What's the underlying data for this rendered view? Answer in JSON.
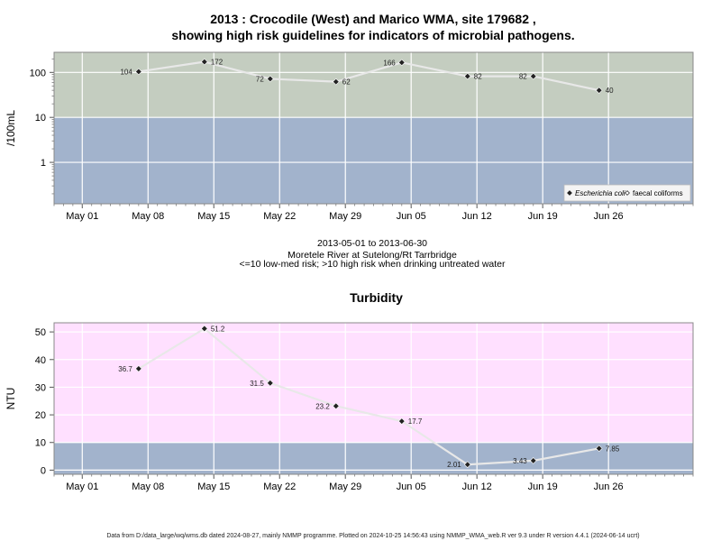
{
  "title_line1": "2013 : Crocodile (West) and Marico WMA, site 179682 ,",
  "title_line2": "showing high risk guidelines for indicators of microbial pathogens.",
  "subtitle": {
    "date_range": "2013-05-01 to 2013-06-30",
    "site": "Moretele River at Sutelong/Rt Tarrbridge",
    "risk_note": "<=10 low-med risk; >10 high risk when drinking untreated water"
  },
  "footer": "Data from D:/data_large/wq/wms.db dated 2024-08-27, mainly NMMP programme. Plotted on 2024-10-25 14:56:43 using NMMP_WMA_web.R ver 9.3 under R version 4.4.1 (2024-06-14 ucrt)",
  "colors": {
    "high_band_micro": "#c4cdc0",
    "high_band_turb": "#ffe0ff",
    "low_band": "#a2b3cc",
    "line": "#e8e8e8",
    "marker": "#222222"
  },
  "chart_data": [
    {
      "type": "line",
      "y_scale": "log",
      "ylabel": "/100mL",
      "yticks": [
        "1",
        "10",
        "100"
      ],
      "ytick_values": [
        1,
        10,
        100
      ],
      "ylim": [
        0.12,
        280
      ],
      "xticks": [
        "May 01",
        "May 08",
        "May 15",
        "May 22",
        "May 29",
        "Jun 05",
        "Jun 12",
        "Jun 19",
        "Jun 26"
      ],
      "xtick_dates": [
        "2013-05-01",
        "2013-05-08",
        "2013-05-15",
        "2013-05-22",
        "2013-05-29",
        "2013-06-05",
        "2013-06-12",
        "2013-06-19",
        "2013-06-26"
      ],
      "xlim": [
        "2013-04-28",
        "2013-07-05"
      ],
      "threshold": 10,
      "legend": {
        "position": "bottom-right",
        "entries": [
          {
            "label": "Escherichia coli",
            "marker": "diamond-filled",
            "italic": true
          },
          {
            "label": "faecal coliforms",
            "marker": "diamond-open",
            "italic": false
          }
        ]
      },
      "series": [
        {
          "name": "Escherichia coli",
          "x": [
            "2013-05-07",
            "2013-05-14",
            "2013-05-21",
            "2013-05-28",
            "2013-06-04",
            "2013-06-11",
            "2013-06-18",
            "2013-06-25"
          ],
          "y": [
            104,
            172,
            72,
            62,
            166,
            82,
            82,
            40
          ],
          "labels": [
            "104",
            "172",
            "72",
            "62",
            "166",
            "82",
            "82",
            "40"
          ],
          "label_side": [
            "left",
            "right",
            "left",
            "right",
            "left",
            "right",
            "left",
            "right"
          ]
        }
      ]
    },
    {
      "type": "line",
      "title": "Turbidity",
      "ylabel": "NTU",
      "yticks": [
        "0",
        "10",
        "20",
        "30",
        "40",
        "50"
      ],
      "ytick_values": [
        0,
        10,
        20,
        30,
        40,
        50
      ],
      "ylim": [
        -1.5,
        53.3
      ],
      "xticks": [
        "May 01",
        "May 08",
        "May 15",
        "May 22",
        "May 29",
        "Jun 05",
        "Jun 12",
        "Jun 19",
        "Jun 26"
      ],
      "xtick_dates": [
        "2013-05-01",
        "2013-05-08",
        "2013-05-15",
        "2013-05-22",
        "2013-05-29",
        "2013-06-05",
        "2013-06-12",
        "2013-06-19",
        "2013-06-26"
      ],
      "xlim": [
        "2013-04-28",
        "2013-07-05"
      ],
      "threshold": 10,
      "series": [
        {
          "name": "Turbidity",
          "x": [
            "2013-05-07",
            "2013-05-14",
            "2013-05-21",
            "2013-05-28",
            "2013-06-04",
            "2013-06-11",
            "2013-06-18",
            "2013-06-25"
          ],
          "y": [
            36.7,
            51.2,
            31.5,
            23.2,
            17.7,
            2.01,
            3.43,
            7.85
          ],
          "labels": [
            "36.7",
            "51.2",
            "31.5",
            "23.2",
            "17.7",
            "2.01",
            "3.43",
            "7.85"
          ],
          "label_side": [
            "left",
            "right",
            "left",
            "left",
            "right",
            "left",
            "left",
            "right"
          ]
        }
      ]
    }
  ]
}
